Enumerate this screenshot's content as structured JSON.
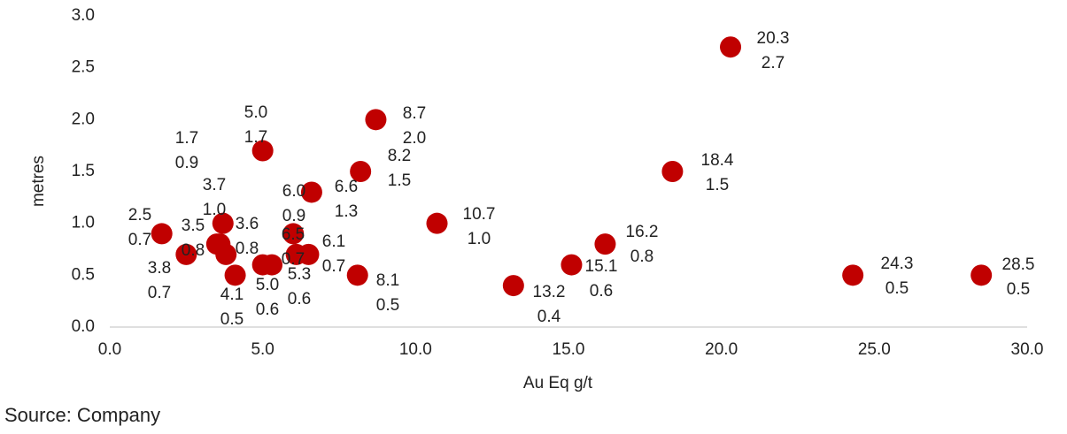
{
  "chart_data": {
    "type": "scatter",
    "x_label": "Au Eq g/t",
    "y_label": "metres",
    "source": "Source: Company",
    "color": "#c00000",
    "x": [
      20.3,
      24.3,
      28.5,
      18.4,
      16.2,
      15.1,
      13.2,
      10.7,
      8.7,
      8.2,
      8.1,
      6.6,
      5.0,
      1.7,
      2.5,
      3.7,
      3.6,
      3.5,
      3.8,
      4.1,
      5.0,
      5.3,
      6.0,
      6.1,
      6.5
    ],
    "x_value_labels": [
      "20.3",
      "24.3",
      "28.5",
      "18.4",
      "16.2",
      "15.1",
      "13.2",
      "10.7",
      "8.7",
      "8.2",
      "8.1",
      "6.6",
      "5.0",
      "1.7",
      "2.5",
      "3.7",
      "3.6",
      "3.5",
      "3.8",
      "4.1",
      "5.0",
      "5.3",
      "6.0",
      "6.1",
      "6.5"
    ],
    "values": [
      2.7,
      0.5,
      0.5,
      1.5,
      0.8,
      0.6,
      0.4,
      1.0,
      2.0,
      1.5,
      0.5,
      1.3,
      1.7,
      0.9,
      0.7,
      1.0,
      0.8,
      0.8,
      0.7,
      0.5,
      0.6,
      0.6,
      0.9,
      0.7,
      0.7
    ],
    "value_labels": [
      "2.7",
      "0.5",
      "0.5",
      "1.5",
      "0.8",
      "0.6",
      "0.4",
      "1.0",
      "2.0",
      "1.5",
      "0.5",
      "1.3",
      "1.7",
      "0.9",
      "0.7",
      "1.0",
      "0.8",
      "0.8",
      "0.7",
      "0.5",
      "0.6",
      "0.6",
      "0.9",
      "0.7",
      "0.7"
    ],
    "xlim": [
      0,
      30
    ],
    "xticks": [
      {
        "value": 0,
        "label": "0.0"
      },
      {
        "value": 5,
        "label": "5.0"
      },
      {
        "value": 10,
        "label": "10.0"
      },
      {
        "value": 15,
        "label": "15.0"
      },
      {
        "value": 20,
        "label": "20.0"
      },
      {
        "value": 25,
        "label": "25.0"
      },
      {
        "value": 30,
        "label": "30.0"
      }
    ],
    "ylim": [
      0,
      3
    ],
    "yticks": [
      {
        "value": 0,
        "label": "0.0"
      },
      0.5,
      {
        "value": 1,
        "label": "1.0"
      },
      1.5,
      {
        "value": 2,
        "label": "2.0"
      },
      2.5,
      {
        "value": 3,
        "label": "3.0"
      }
    ],
    "grid": false
  }
}
